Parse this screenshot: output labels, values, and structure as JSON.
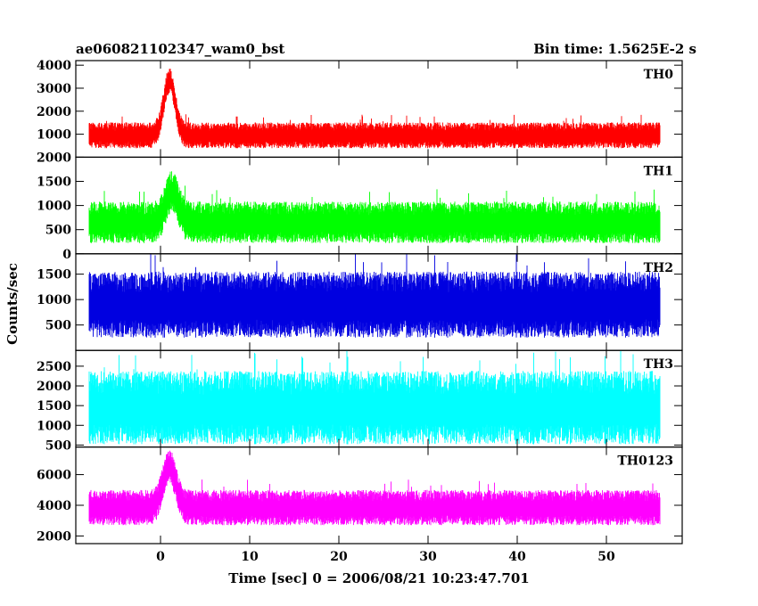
{
  "chart_data": {
    "type": "line",
    "title": "ae060821102347_wam0_bst",
    "subtitle": "Bin time: 1.5625E-2 s",
    "xlabel": "Time [sec] 0 = 2006/08/21 10:23:47.701",
    "ylabel": "Counts/sec",
    "xlim": [
      -9.5,
      58.5
    ],
    "x_ticks": [
      0,
      10,
      20,
      30,
      40,
      50
    ],
    "x_ticklabels": [
      "0",
      "10",
      "20",
      "30",
      "40",
      "50"
    ],
    "x_range": [
      -8,
      56
    ],
    "grid": false,
    "panels": [
      {
        "name": "TH0",
        "color": "#ff0000",
        "ylim": [
          0,
          4200
        ],
        "y_ticks": [
          1000,
          2000,
          3000,
          4000
        ],
        "y_ticklabels": [
          "1000",
          "2000",
          "3000",
          "4000"
        ],
        "band": {
          "base": 950,
          "amp": 560,
          "floor": 180
        },
        "burst": {
          "center": 1.0,
          "width": 0.9,
          "height": 2400
        }
      },
      {
        "name": "TH1",
        "color": "#00ff00",
        "ylim": [
          0,
          2000
        ],
        "y_ticks": [
          0,
          500,
          1000,
          1500,
          2000
        ],
        "y_ticklabels": [
          "0",
          "500",
          "1000",
          "1500",
          "2000"
        ],
        "band": {
          "base": 650,
          "amp": 430,
          "floor": 110
        },
        "burst": {
          "center": 1.3,
          "width": 1.0,
          "height": 650
        }
      },
      {
        "name": "TH2",
        "color": "#0000e0",
        "ylim": [
          0,
          1900
        ],
        "y_ticks": [
          500,
          1000,
          1500
        ],
        "y_ticklabels": [
          "500",
          "1000",
          "1500"
        ],
        "band": {
          "base": 900,
          "amp": 650,
          "floor": 100
        },
        "burst": {
          "center": 1.0,
          "width": 1.0,
          "height": 0
        }
      },
      {
        "name": "TH3",
        "color": "#00ffff",
        "ylim": [
          450,
          2900
        ],
        "y_ticks": [
          500,
          1000,
          1500,
          2000,
          2500
        ],
        "y_ticklabels": [
          "500",
          "1000",
          "1500",
          "2000",
          "2500"
        ],
        "band": {
          "base": 1450,
          "amp": 930,
          "floor": 520
        },
        "burst": {
          "center": 1.0,
          "width": 1.0,
          "height": 0
        }
      },
      {
        "name": "TH0123",
        "color": "#ff00ff",
        "ylim": [
          1500,
          7800
        ],
        "y_ticks": [
          2000,
          4000,
          6000
        ],
        "y_ticklabels": [
          "2000",
          "4000",
          "6000"
        ],
        "band": {
          "base": 3850,
          "amp": 1150,
          "floor": 1550
        },
        "burst": {
          "center": 1.0,
          "width": 1.0,
          "height": 2700
        }
      }
    ]
  }
}
